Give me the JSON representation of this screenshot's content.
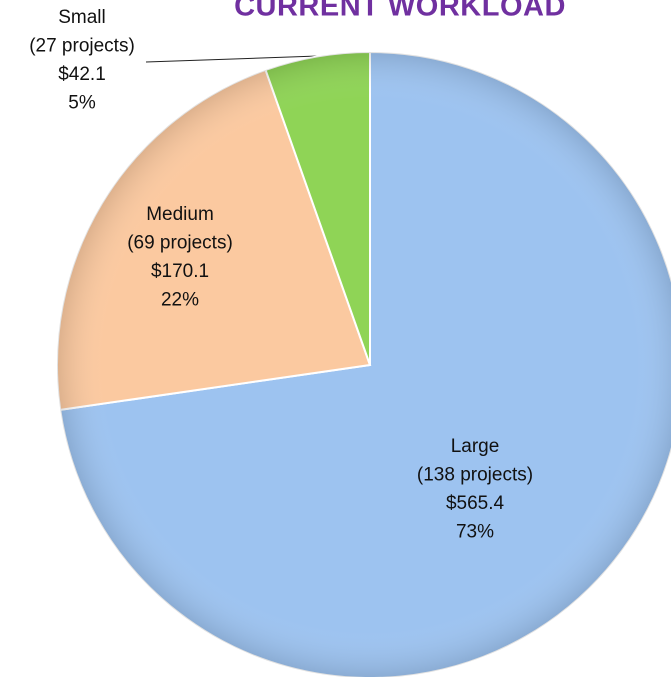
{
  "chart_data": {
    "type": "pie",
    "title": "CURRENT WORKLOAD",
    "categories": [
      "Large",
      "Medium",
      "Small"
    ],
    "details": [
      "(138 projects)",
      "(69 projects)",
      "(27 projects)"
    ],
    "values": [
      565.4,
      170.1,
      42.1
    ],
    "value_labels": [
      "$565.4",
      "$170.1",
      "$42.1"
    ],
    "percents": [
      73,
      22,
      5
    ],
    "percent_labels": [
      "73%",
      "22%",
      "5%"
    ],
    "colors": [
      "#9dc3f0",
      "#fbc9a0",
      "#8fd456"
    ]
  }
}
